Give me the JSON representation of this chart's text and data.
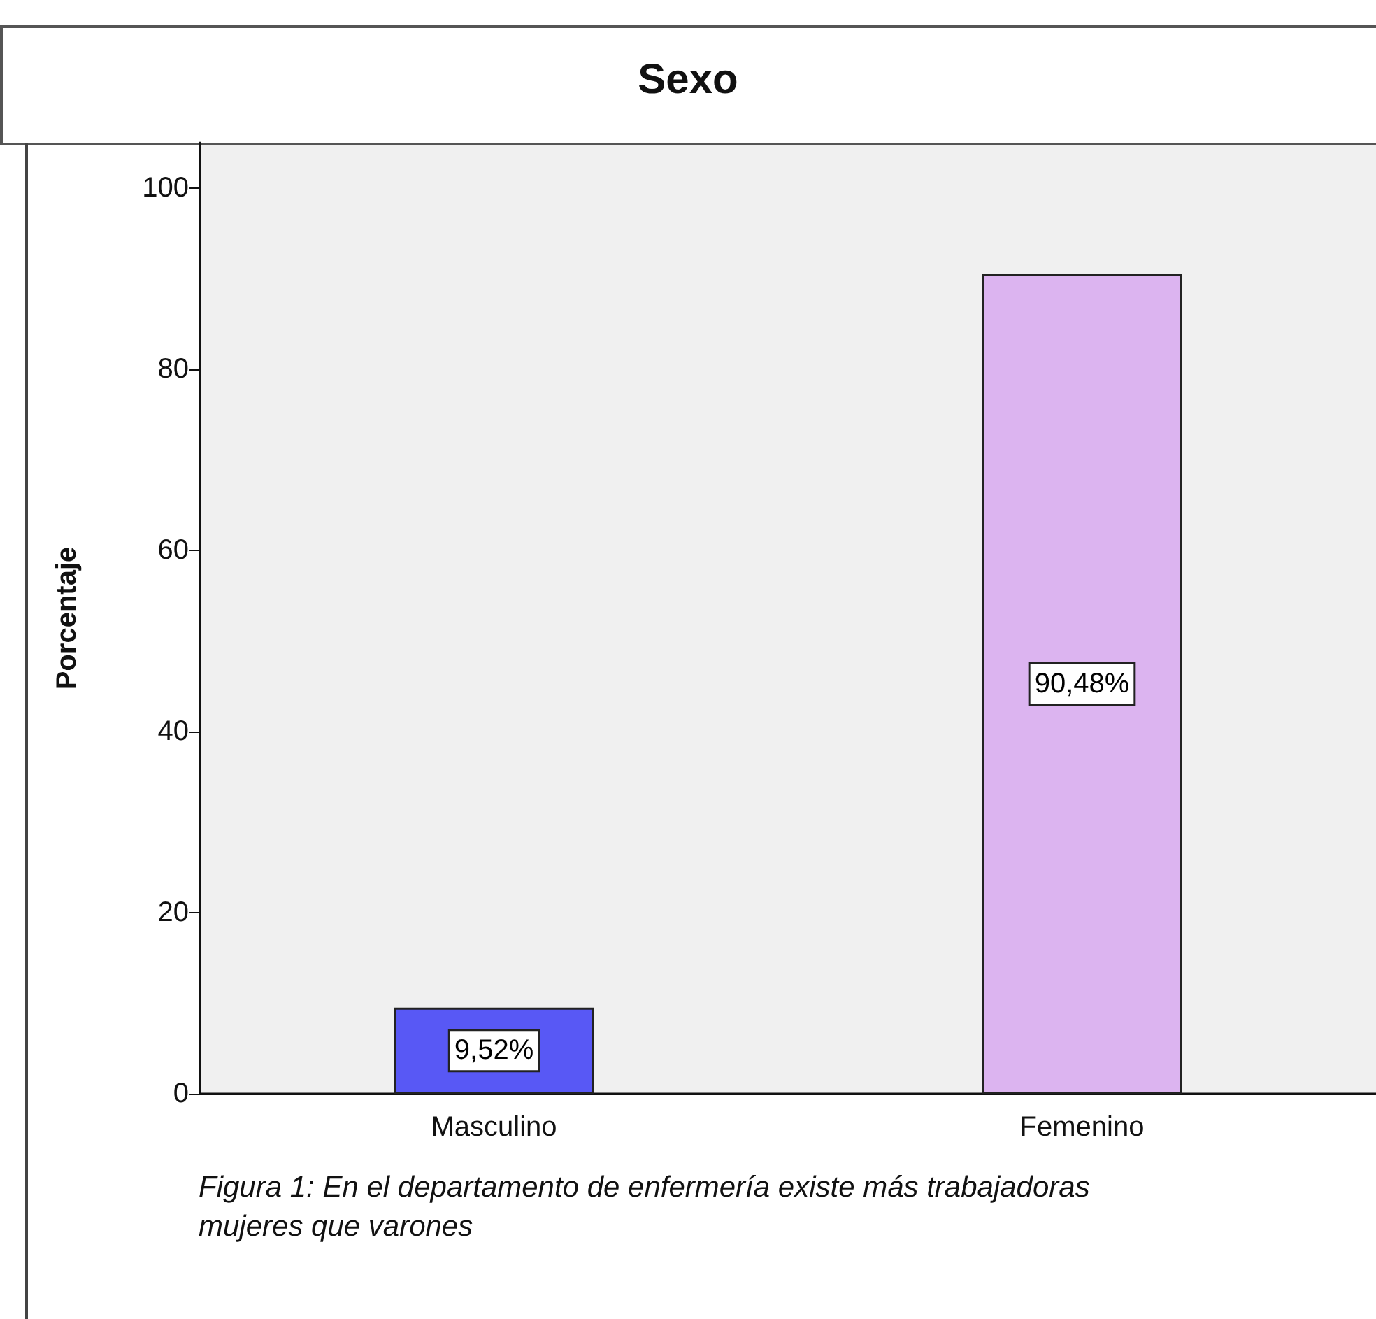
{
  "chart_data": {
    "type": "bar",
    "title": "Sexo",
    "ylabel": "Porcentaje",
    "categories": [
      "Masculino",
      "Femenino"
    ],
    "values": [
      9.52,
      90.48
    ],
    "colors": [
      "#5858f5",
      "#dcb4f0"
    ],
    "value_labels": [
      "9,52%",
      "90,48%"
    ],
    "ylim": [
      0,
      105
    ],
    "yticks": [
      0,
      20,
      40,
      60,
      80,
      100
    ],
    "grid": false,
    "annotations": [
      "Figura 1: En el departamento de enfermería existe más trabajadoras mujeres que varones"
    ]
  }
}
